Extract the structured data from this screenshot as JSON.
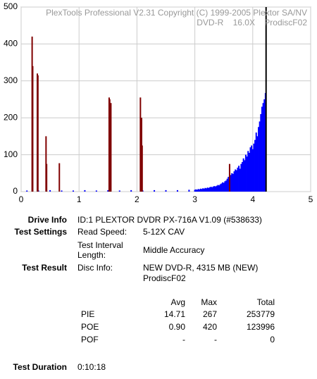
{
  "chart_data": {
    "type": "bar",
    "title": "PlexTools Professional V2.31 Copyright (C) 1999-2005 Plextor SA/NV",
    "subtitle": "DVD-R    16.0X    ProdiscF02",
    "xlim": [
      0,
      5
    ],
    "xticks": [
      0,
      1,
      2,
      3,
      4,
      5
    ],
    "ylim": [
      0,
      500
    ],
    "yticks": [
      0,
      100,
      200,
      300,
      400,
      500
    ],
    "grid": true,
    "series": [
      {
        "color": "#0000ff",
        "x": [
          0.1,
          0.3,
          0.5,
          0.7,
          0.9,
          1.1,
          1.3,
          1.5,
          1.7,
          1.9,
          2.1,
          2.3,
          2.5,
          2.7,
          2.9,
          3.0,
          3.02,
          3.04,
          3.06,
          3.08,
          3.1,
          3.12,
          3.14,
          3.16,
          3.18,
          3.2,
          3.22,
          3.24,
          3.26,
          3.28,
          3.3,
          3.32,
          3.34,
          3.36,
          3.38,
          3.4,
          3.42,
          3.44,
          3.46,
          3.48,
          3.5,
          3.52,
          3.54,
          3.56,
          3.58,
          3.6,
          3.62,
          3.64,
          3.66,
          3.68,
          3.7,
          3.72,
          3.74,
          3.76,
          3.78,
          3.8,
          3.82,
          3.84,
          3.86,
          3.88,
          3.9,
          3.92,
          3.94,
          3.96,
          3.98,
          4.0,
          4.02,
          4.04,
          4.06,
          4.08,
          4.1,
          4.12,
          4.14,
          4.16,
          4.18,
          4.2,
          4.22
        ],
        "values": [
          3,
          3,
          4,
          3,
          3,
          4,
          3,
          4,
          3,
          4,
          3,
          4,
          4,
          4,
          5,
          5,
          6,
          5,
          7,
          6,
          8,
          7,
          9,
          8,
          10,
          9,
          11,
          10,
          12,
          13,
          12,
          14,
          15,
          14,
          16,
          18,
          17,
          20,
          22,
          25,
          24,
          28,
          30,
          35,
          40,
          38,
          45,
          50,
          48,
          55,
          60,
          58,
          65,
          70,
          62,
          75,
          80,
          90,
          85,
          100,
          95,
          110,
          105,
          120,
          125,
          115,
          130,
          140,
          160,
          150,
          175,
          190,
          210,
          230,
          240,
          250,
          267
        ]
      },
      {
        "color": "#800000",
        "x": [
          0.19,
          0.2,
          0.28,
          0.29,
          0.43,
          0.44,
          0.66,
          1.52,
          1.53,
          1.55,
          2.06,
          2.08,
          2.09,
          3.6
        ],
        "values": [
          420,
          340,
          320,
          315,
          150,
          75,
          77,
          255,
          250,
          240,
          255,
          200,
          125,
          75
        ]
      },
      {
        "color": "#000000",
        "x": [
          4.23
        ],
        "values": [
          500
        ]
      }
    ]
  },
  "info": {
    "drive_info_label": "Drive Info",
    "drive_info": "ID:1 PLEXTOR DVDR PX-716A V1.09 (#538633)",
    "test_settings_label": "Test Settings",
    "read_speed_label": "Read Speed:",
    "read_speed": "5-12X CAV",
    "interval_label_1": "Test Interval",
    "interval_label_2": "Length:",
    "interval": "Middle Accuracy",
    "test_result_label": "Test Result",
    "disc_info_label": "Disc Info:",
    "disc_info_1": "NEW DVD-R, 4315 MB (NEW)",
    "disc_info_2": "ProdiscF02",
    "duration_label": "Test Duration",
    "duration": "0:10:18"
  },
  "table": {
    "header": [
      "Avg",
      "Max",
      "Total"
    ],
    "rows": [
      [
        "PIE",
        "14.71",
        "267",
        "253779"
      ],
      [
        "POE",
        "0.90",
        "420",
        "123996"
      ],
      [
        "POF",
        "-",
        "-",
        "0"
      ]
    ]
  }
}
